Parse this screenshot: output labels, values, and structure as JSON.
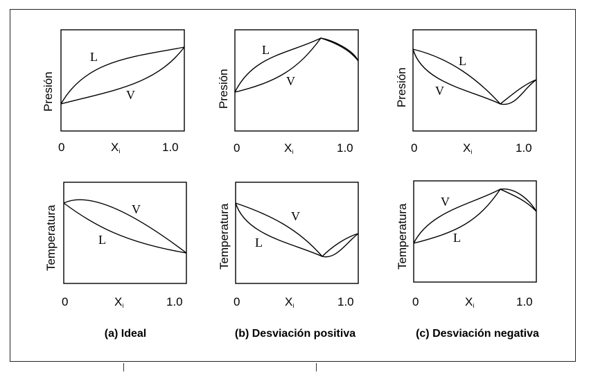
{
  "panels": {
    "a_top": {
      "ylabel": "Presión",
      "x_min": "0",
      "x_label": "X",
      "x_sub": "i",
      "x_max": "1.0",
      "curve_upper": "L",
      "curve_lower": "V"
    },
    "b_top": {
      "ylabel": "Presión",
      "x_min": "0",
      "x_label": "X",
      "x_sub": "i",
      "x_max": "1.0",
      "curve_upper": "L",
      "curve_lower": "V"
    },
    "c_top": {
      "ylabel": "Presión",
      "x_min": "0",
      "x_label": "X",
      "x_sub": "i",
      "x_max": "1.0",
      "curve_upper": "L",
      "curve_lower": "V"
    },
    "a_bottom": {
      "ylabel": "Temperatura",
      "x_min": "0",
      "x_label": "X",
      "x_sub": "i",
      "x_max": "1.0",
      "curve_upper": "V",
      "curve_lower": "L"
    },
    "b_bottom": {
      "ylabel": "Temperatura",
      "x_min": "0",
      "x_label": "X",
      "x_sub": "i",
      "x_max": "1.0",
      "curve_upper": "V",
      "curve_lower": "L"
    },
    "c_bottom": {
      "ylabel": "Temperatura",
      "x_min": "0",
      "x_label": "X",
      "x_sub": "i",
      "x_max": "1.0",
      "curve_upper": "V",
      "curve_lower": "L"
    }
  },
  "captions": {
    "a": "(a) Ideal",
    "b": "(b) Desviación positiva",
    "c": "(c) Desviación negativa"
  }
}
